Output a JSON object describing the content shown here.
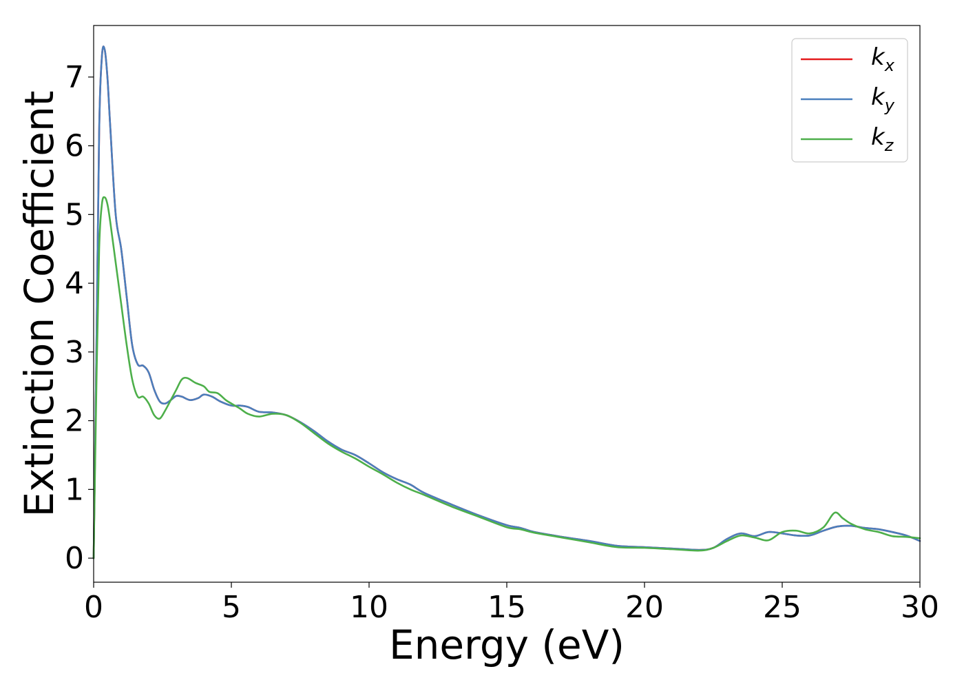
{
  "chart_data": {
    "type": "line",
    "title": "",
    "xlabel": "Energy (eV)",
    "ylabel": "Extinction Coefficient",
    "xlim": [
      0,
      30
    ],
    "ylim": [
      -0.35,
      7.75
    ],
    "xticks": [
      0,
      5,
      10,
      15,
      20,
      25,
      30
    ],
    "yticks": [
      0,
      1,
      2,
      3,
      4,
      5,
      6,
      7
    ],
    "grid": false,
    "legend_position": "top-right",
    "series": [
      {
        "name": "kx",
        "legend_base": "k",
        "legend_sub": "x",
        "color": "#e41a1c",
        "x": [
          0,
          0.1,
          0.2,
          0.3,
          0.4,
          0.5,
          0.6,
          0.8,
          1.0,
          1.2,
          1.4,
          1.6,
          1.8,
          2.0,
          2.2,
          2.4,
          2.6,
          2.8,
          3.0,
          3.2,
          3.5,
          3.8,
          4.0,
          4.3,
          4.6,
          5.0,
          5.3,
          5.6,
          6.0,
          6.5,
          7.0,
          7.5,
          8.0,
          8.5,
          9.0,
          9.5,
          10.0,
          10.5,
          11.0,
          11.5,
          12.0,
          13.0,
          14.0,
          15.0,
          15.5,
          16.0,
          17.0,
          18.0,
          19.0,
          20.0,
          21.0,
          22.0,
          22.5,
          23.0,
          23.5,
          24.0,
          24.5,
          25.0,
          25.5,
          26.0,
          26.5,
          27.0,
          27.5,
          28.0,
          28.5,
          29.0,
          29.5,
          30.0
        ],
        "y": [
          0.0,
          3.0,
          6.2,
          7.3,
          7.4,
          7.0,
          6.3,
          5.0,
          4.5,
          3.8,
          3.1,
          2.82,
          2.8,
          2.7,
          2.45,
          2.28,
          2.25,
          2.3,
          2.36,
          2.35,
          2.3,
          2.33,
          2.38,
          2.35,
          2.28,
          2.22,
          2.22,
          2.2,
          2.13,
          2.12,
          2.08,
          1.98,
          1.85,
          1.7,
          1.58,
          1.5,
          1.38,
          1.25,
          1.15,
          1.07,
          0.95,
          0.78,
          0.62,
          0.48,
          0.44,
          0.38,
          0.31,
          0.25,
          0.18,
          0.16,
          0.14,
          0.12,
          0.15,
          0.28,
          0.36,
          0.32,
          0.38,
          0.36,
          0.33,
          0.33,
          0.4,
          0.46,
          0.47,
          0.44,
          0.42,
          0.38,
          0.33,
          0.25
        ]
      },
      {
        "name": "ky",
        "legend_base": "k",
        "legend_sub": "y",
        "color": "#4a7fbd",
        "x": [
          0,
          0.1,
          0.2,
          0.3,
          0.4,
          0.5,
          0.6,
          0.8,
          1.0,
          1.2,
          1.4,
          1.6,
          1.8,
          2.0,
          2.2,
          2.4,
          2.6,
          2.8,
          3.0,
          3.2,
          3.5,
          3.8,
          4.0,
          4.3,
          4.6,
          5.0,
          5.3,
          5.6,
          6.0,
          6.5,
          7.0,
          7.5,
          8.0,
          8.5,
          9.0,
          9.5,
          10.0,
          10.5,
          11.0,
          11.5,
          12.0,
          13.0,
          14.0,
          15.0,
          15.5,
          16.0,
          17.0,
          18.0,
          19.0,
          20.0,
          21.0,
          22.0,
          22.5,
          23.0,
          23.5,
          24.0,
          24.5,
          25.0,
          25.5,
          26.0,
          26.5,
          27.0,
          27.5,
          28.0,
          28.5,
          29.0,
          29.5,
          30.0
        ],
        "y": [
          0.0,
          3.0,
          6.2,
          7.3,
          7.4,
          7.0,
          6.3,
          5.0,
          4.5,
          3.8,
          3.1,
          2.82,
          2.8,
          2.7,
          2.45,
          2.28,
          2.25,
          2.3,
          2.36,
          2.35,
          2.3,
          2.33,
          2.38,
          2.35,
          2.28,
          2.22,
          2.22,
          2.2,
          2.13,
          2.12,
          2.08,
          1.98,
          1.85,
          1.7,
          1.58,
          1.5,
          1.38,
          1.25,
          1.15,
          1.07,
          0.95,
          0.78,
          0.62,
          0.48,
          0.44,
          0.38,
          0.31,
          0.25,
          0.18,
          0.16,
          0.14,
          0.12,
          0.15,
          0.28,
          0.36,
          0.32,
          0.38,
          0.36,
          0.33,
          0.33,
          0.4,
          0.46,
          0.47,
          0.44,
          0.42,
          0.38,
          0.33,
          0.25
        ]
      },
      {
        "name": "kz",
        "legend_base": "k",
        "legend_sub": "z",
        "color": "#4daf4a",
        "x": [
          0,
          0.1,
          0.2,
          0.3,
          0.4,
          0.5,
          0.6,
          0.8,
          1.0,
          1.2,
          1.4,
          1.6,
          1.8,
          2.0,
          2.2,
          2.4,
          2.6,
          2.8,
          3.0,
          3.2,
          3.4,
          3.7,
          4.0,
          4.2,
          4.5,
          4.8,
          5.0,
          5.3,
          5.6,
          6.0,
          6.5,
          7.0,
          7.5,
          8.0,
          8.5,
          9.0,
          9.5,
          10.0,
          10.5,
          11.0,
          11.5,
          12.0,
          13.0,
          14.0,
          15.0,
          15.5,
          16.0,
          17.0,
          18.0,
          19.0,
          20.0,
          21.0,
          22.0,
          22.5,
          23.0,
          23.5,
          24.0,
          24.5,
          25.0,
          25.5,
          26.0,
          26.5,
          26.9,
          27.2,
          27.5,
          28.0,
          28.5,
          29.0,
          29.5,
          30.0
        ],
        "y": [
          0.0,
          2.5,
          4.5,
          5.15,
          5.25,
          5.15,
          4.9,
          4.3,
          3.7,
          3.1,
          2.6,
          2.35,
          2.35,
          2.25,
          2.08,
          2.03,
          2.15,
          2.3,
          2.45,
          2.6,
          2.62,
          2.55,
          2.5,
          2.42,
          2.4,
          2.3,
          2.25,
          2.18,
          2.1,
          2.06,
          2.1,
          2.08,
          1.97,
          1.82,
          1.67,
          1.55,
          1.45,
          1.33,
          1.22,
          1.1,
          1.0,
          0.92,
          0.75,
          0.6,
          0.45,
          0.42,
          0.37,
          0.3,
          0.23,
          0.16,
          0.15,
          0.13,
          0.11,
          0.15,
          0.25,
          0.33,
          0.3,
          0.26,
          0.38,
          0.4,
          0.36,
          0.45,
          0.66,
          0.58,
          0.5,
          0.42,
          0.38,
          0.32,
          0.31,
          0.29
        ]
      }
    ]
  }
}
